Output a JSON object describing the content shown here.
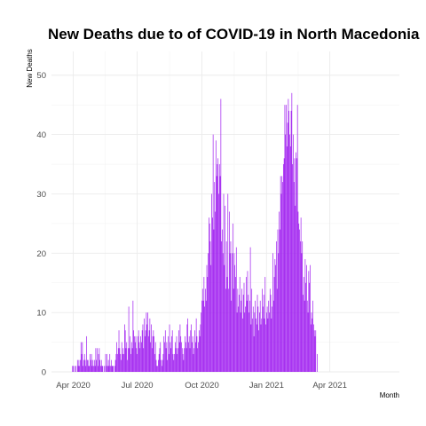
{
  "chart_data": {
    "type": "bar",
    "title": "New Deaths due to of COVID-19 in North Macedonia",
    "xlabel": "Month",
    "ylabel": "New Deaths",
    "ylim": [
      0,
      54
    ],
    "yticks": [
      0,
      10,
      20,
      30,
      40,
      50
    ],
    "xticks": [
      {
        "date": "2020-04-01",
        "label": "Apr 2020"
      },
      {
        "date": "2020-07-01",
        "label": "Jul 2020"
      },
      {
        "date": "2020-10-01",
        "label": "Oct 2020"
      },
      {
        "date": "2021-01-01",
        "label": "Jan 2021"
      },
      {
        "date": "2021-04-01",
        "label": "Apr 2021"
      }
    ],
    "xlim": [
      "2020-03-01",
      "2021-07-09"
    ],
    "grid": true,
    "bar_color": "#a020f0",
    "start_date": "2020-03-10",
    "values": [
      0,
      0,
      0,
      0,
      0,
      0,
      0,
      0,
      0,
      0,
      0,
      0,
      0,
      0,
      0,
      0,
      0,
      0,
      0,
      0,
      0,
      1,
      1,
      0,
      1,
      0,
      1,
      0,
      2,
      1,
      2,
      1,
      2,
      5,
      3,
      5,
      1,
      2,
      3,
      2,
      1,
      6,
      2,
      2,
      1,
      1,
      3,
      2,
      3,
      1,
      2,
      1,
      2,
      1,
      4,
      2,
      4,
      1,
      3,
      4,
      2,
      1,
      2,
      1,
      1,
      0,
      1,
      0,
      3,
      1,
      3,
      1,
      2,
      1,
      3,
      1,
      2,
      1,
      1,
      1,
      0,
      1,
      2,
      3,
      5,
      3,
      4,
      7,
      4,
      3,
      2,
      5,
      3,
      4,
      3,
      8,
      7,
      4,
      5,
      2,
      4,
      11,
      4,
      6,
      3,
      5,
      4,
      12,
      7,
      6,
      5,
      6,
      4,
      3,
      6,
      7,
      5,
      4,
      6,
      5,
      7,
      8,
      4,
      9,
      6,
      7,
      10,
      8,
      10,
      6,
      7,
      9,
      5,
      8,
      4,
      6,
      7,
      6,
      3,
      5,
      2,
      1,
      1,
      2,
      3,
      4,
      5,
      2,
      1,
      2,
      3,
      6,
      5,
      7,
      4,
      5,
      2,
      6,
      3,
      8,
      5,
      4,
      6,
      7,
      3,
      2,
      3,
      5,
      4,
      6,
      3,
      4,
      7,
      5,
      8,
      6,
      5,
      4,
      3,
      2,
      4,
      6,
      5,
      4,
      8,
      9,
      5,
      6,
      4,
      7,
      8,
      5,
      6,
      3,
      4,
      7,
      5,
      9,
      6,
      4,
      5,
      7,
      6,
      8,
      10,
      12,
      14,
      12,
      16,
      11,
      14,
      12,
      18,
      16,
      20,
      26,
      25,
      22,
      18,
      30,
      26,
      40,
      24,
      32,
      27,
      39,
      33,
      35,
      36,
      30,
      35,
      33,
      46,
      22,
      24,
      20,
      30,
      18,
      28,
      14,
      22,
      16,
      30,
      14,
      27,
      20,
      22,
      12,
      20,
      25,
      14,
      20,
      18,
      16,
      21,
      10,
      14,
      11,
      13,
      16,
      10,
      12,
      14,
      9,
      13,
      15,
      10,
      11,
      16,
      12,
      17,
      13,
      10,
      12,
      21,
      8,
      14,
      9,
      11,
      6,
      10,
      12,
      9,
      8,
      13,
      11,
      7,
      10,
      12,
      8,
      9,
      14,
      11,
      13,
      9,
      16,
      8,
      10,
      11,
      9,
      12,
      10,
      14,
      13,
      9,
      11,
      20,
      12,
      16,
      19,
      18,
      22,
      14,
      24,
      20,
      27,
      24,
      33,
      30,
      33,
      32,
      35,
      36,
      45,
      40,
      45,
      38,
      42,
      46,
      44,
      40,
      38,
      44,
      47,
      35,
      40,
      32,
      36,
      28,
      37,
      36,
      45,
      27,
      25,
      24,
      22,
      26,
      20,
      22,
      13,
      16,
      12,
      19,
      15,
      18,
      12,
      10,
      17,
      15,
      18,
      8,
      10,
      9,
      12,
      8,
      7,
      6,
      7,
      0,
      3,
      0,
      0,
      0,
      0,
      0,
      0,
      0,
      0,
      0,
      0,
      0,
      0,
      0,
      0,
      0,
      0,
      0
    ]
  }
}
